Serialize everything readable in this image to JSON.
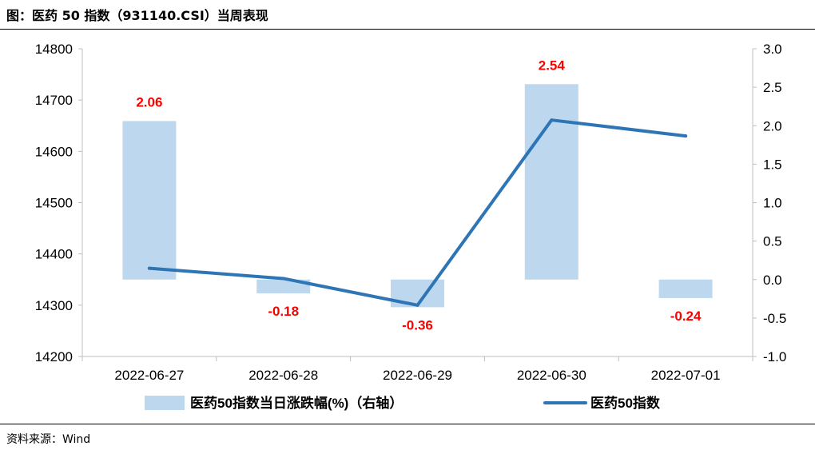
{
  "figure_title": "图：医药 50 指数（931140.CSI）当周表现",
  "source_note": "资料来源：Wind",
  "chart_data": {
    "type": "bar+line",
    "categories": [
      "2022-06-27",
      "2022-06-28",
      "2022-06-29",
      "2022-06-30",
      "2022-07-01"
    ],
    "series": [
      {
        "name": "医药50指数当日涨跌幅(%)（右轴）",
        "type": "bar",
        "axis": "right",
        "values": [
          2.06,
          -0.18,
          -0.36,
          2.54,
          -0.24
        ],
        "labels": [
          "2.06",
          "-0.18",
          "-0.36",
          "2.54",
          "-0.24"
        ],
        "color": "#bdd7ee",
        "label_color": "#ff0000"
      },
      {
        "name": "医药50指数",
        "type": "line",
        "axis": "left",
        "values": [
          14372,
          14352,
          14300,
          14661,
          14630
        ],
        "color": "#2e75b6"
      }
    ],
    "y_left": {
      "range": [
        14200,
        14800
      ],
      "ticks": [
        "14800",
        "14700",
        "14600",
        "14500",
        "14400",
        "14300",
        "14200"
      ]
    },
    "y_right": {
      "range": [
        -1.0,
        3.0
      ],
      "ticks": [
        "3.0",
        "2.5",
        "2.0",
        "1.5",
        "1.0",
        "0.5",
        "0.0",
        "-0.5",
        "-1.0"
      ]
    },
    "grid": false,
    "legend": "bottom"
  }
}
